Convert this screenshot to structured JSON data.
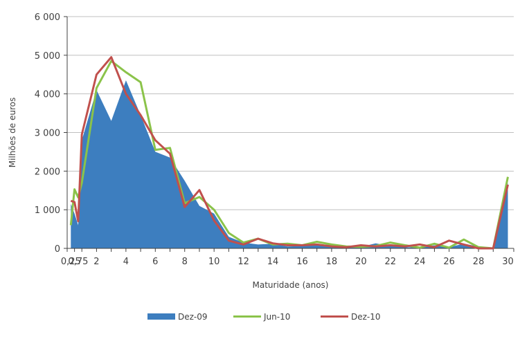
{
  "chart_data": {
    "type": "line",
    "xlabel": "Maturidade (anos)",
    "ylabel": "Milhões de euros",
    "ylim": [
      0,
      6000
    ],
    "yticks": [
      0,
      1000,
      2000,
      3000,
      4000,
      5000,
      6000
    ],
    "ytick_labels": [
      "0",
      "1 000",
      "2 000",
      "3 000",
      "4 000",
      "5 000",
      "6 000"
    ],
    "x": [
      0.25,
      0.5,
      0.75,
      1,
      2,
      3,
      4,
      5,
      6,
      7,
      8,
      9,
      10,
      11,
      12,
      13,
      14,
      15,
      16,
      17,
      18,
      19,
      20,
      21,
      22,
      23,
      24,
      25,
      26,
      27,
      28,
      29,
      30
    ],
    "xtick_labels": [
      "0,25",
      "0,75",
      "2",
      "4",
      "6",
      "8",
      "10",
      "12",
      "14",
      "16",
      "18",
      "20",
      "22",
      "24",
      "26",
      "28",
      "30"
    ],
    "grid": "horizontal",
    "legend": "bottom",
    "series": [
      {
        "name": "Dez-09",
        "type": "area",
        "color": "#3d7ebf",
        "values": [
          1150,
          900,
          600,
          2800,
          4100,
          3300,
          4350,
          3450,
          2500,
          2350,
          1750,
          1100,
          900,
          300,
          150,
          100,
          120,
          50,
          60,
          80,
          100,
          70,
          40,
          130,
          60,
          30,
          20,
          80,
          30,
          120,
          50,
          0,
          1700
        ]
      },
      {
        "name": "Jun-10",
        "type": "line",
        "color": "#8bc34a",
        "values": [
          600,
          1530,
          1320,
          1700,
          4150,
          4850,
          4560,
          4300,
          2550,
          2600,
          1170,
          1330,
          1000,
          400,
          150,
          250,
          100,
          120,
          80,
          170,
          100,
          50,
          40,
          60,
          150,
          80,
          20,
          120,
          20,
          230,
          30,
          0,
          1850
        ]
      },
      {
        "name": "Dez-10",
        "type": "line",
        "color": "#c0504d",
        "values": [
          1230,
          1200,
          700,
          2950,
          4500,
          4950,
          4000,
          3450,
          2800,
          2450,
          1070,
          1510,
          720,
          200,
          100,
          250,
          130,
          80,
          80,
          100,
          50,
          30,
          80,
          50,
          80,
          50,
          100,
          30,
          200,
          100,
          0,
          0,
          1650
        ]
      }
    ]
  }
}
